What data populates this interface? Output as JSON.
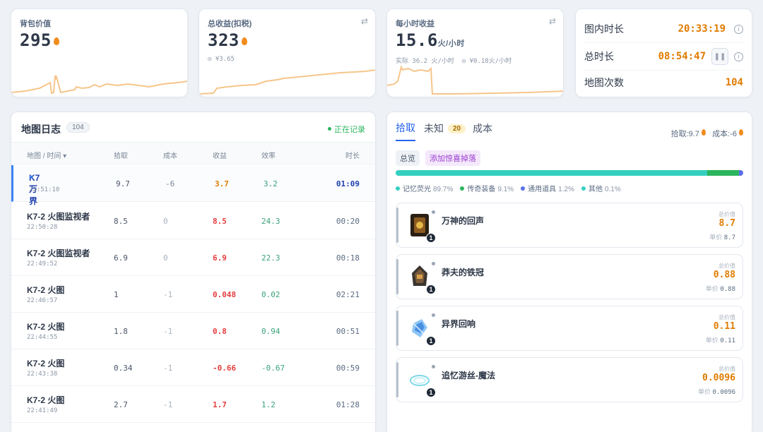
{
  "stats": {
    "bag": {
      "label": "背包价值",
      "value": "295"
    },
    "total": {
      "label": "总收益(扣税)",
      "value": "323",
      "sub": "¥3.65"
    },
    "hourly": {
      "label": "每小时收益",
      "value": "15.6",
      "unit": "火/小时",
      "actual": "实际 36.2 火/小时",
      "rmb": "¥0.18火/小时"
    }
  },
  "timers": {
    "in_map_label": "图内时长",
    "in_map_value": "20:33:19",
    "total_label": "总时长",
    "total_value": "08:54:47",
    "count_label": "地图次数",
    "count_value": "104"
  },
  "log": {
    "title": "地图日志",
    "count": "104",
    "status": "正在记录",
    "headers": {
      "name": "地图 / 时间 ▾",
      "pick": "拾取",
      "cost": "成本",
      "revenue": "收益",
      "efficiency": "效率",
      "duration": "时长"
    },
    "rows": [
      {
        "name": "K7 万界",
        "time": "22:51:10",
        "pick": "9.7",
        "cost": "-6",
        "revenue": "3.7",
        "efficiency": "3.2",
        "duration": "01:09"
      },
      {
        "name": "K7-2 火图监视者",
        "time": "22:50:28",
        "pick": "8.5",
        "cost": "0",
        "revenue": "8.5",
        "efficiency": "24.3",
        "duration": "00:20"
      },
      {
        "name": "K7-2 火图监视者",
        "time": "22:49:52",
        "pick": "6.9",
        "cost": "0",
        "revenue": "6.9",
        "efficiency": "22.3",
        "duration": "00:18"
      },
      {
        "name": "K7-2 火图",
        "time": "22:46:57",
        "pick": "1",
        "cost": "-1",
        "revenue": "0.048",
        "efficiency": "0.02",
        "duration": "02:21"
      },
      {
        "name": "K7-2 火图",
        "time": "22:44:55",
        "pick": "1.8",
        "cost": "-1",
        "revenue": "0.8",
        "efficiency": "0.94",
        "duration": "00:51"
      },
      {
        "name": "K7-2 火图",
        "time": "22:43:38",
        "pick": "0.34",
        "cost": "-1",
        "revenue": "-0.66",
        "efficiency": "-0.67",
        "duration": "00:59"
      },
      {
        "name": "K7-2 火图",
        "time": "22:41:49",
        "pick": "2.7",
        "cost": "-1",
        "revenue": "1.7",
        "efficiency": "1.2",
        "duration": "01:28"
      }
    ]
  },
  "detail": {
    "tabs": {
      "pick": "拾取",
      "unknown": "未知",
      "unknown_count": "20",
      "cost": "成本"
    },
    "summary_pick": "拾取:9.7",
    "summary_cost": "成本:-6",
    "chip_overview": "总览",
    "chip_add": "添加惊喜掉落",
    "distribution": [
      {
        "name": "记忆荧光",
        "pct": "89.7%",
        "fraction": 0.897,
        "color": "#35cfc0"
      },
      {
        "name": "传奇装备",
        "pct": "9.1%",
        "fraction": 0.091,
        "color": "#2bb55e"
      },
      {
        "name": "通用道具",
        "pct": "1.2%",
        "fraction": 0.012,
        "color": "#5b6ee8"
      },
      {
        "name": "其他",
        "pct": "0.1%",
        "fraction": 0.001,
        "color": "#35cfc0"
      }
    ],
    "total_label": "总价值",
    "unit_label": "单价",
    "items": [
      {
        "name": "万神的回声",
        "qty": "1",
        "total": "8.7",
        "unit_price": "8.7"
      },
      {
        "name": "莽夫的铁冠",
        "qty": "1",
        "total": "0.88",
        "unit_price": "0.88"
      },
      {
        "name": "异界回响",
        "qty": "1",
        "total": "0.11",
        "unit_price": "0.11"
      },
      {
        "name": "追忆游丝-魔法",
        "qty": "1",
        "total": "0.0096",
        "unit_price": "0.0096"
      }
    ]
  }
}
